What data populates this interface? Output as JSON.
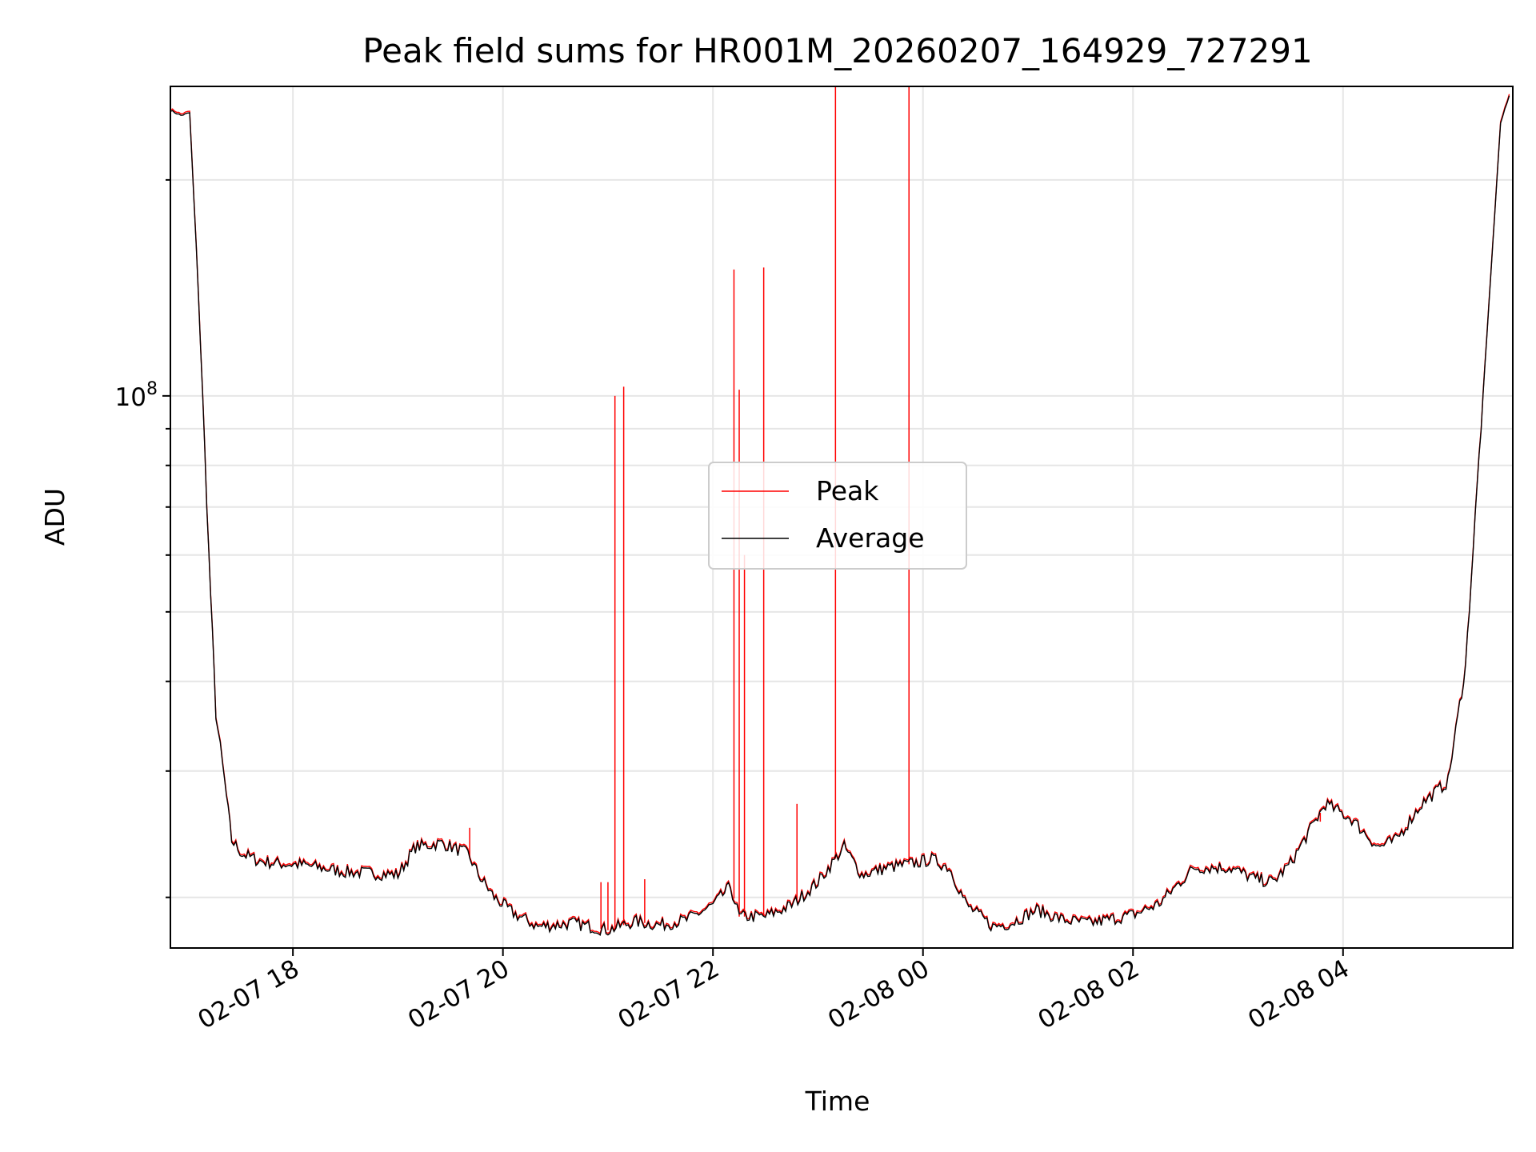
{
  "chart_data": {
    "type": "line",
    "title": "Peak field sums for HR001M_20260207_164929_727291",
    "xlabel": "Time",
    "ylabel": "ADU",
    "yscale": "log",
    "x_unit": "datetime",
    "xlim": [
      "2026-02-07 16:50",
      "2026-02-08 05:37"
    ],
    "ylim": [
      17000000,
      270000000
    ],
    "yticks": [
      {
        "value": 100000000,
        "label": "10^8"
      }
    ],
    "xticks": [
      {
        "value": "2026-02-07 18:00",
        "label": "02-07 18"
      },
      {
        "value": "2026-02-07 20:00",
        "label": "02-07 20"
      },
      {
        "value": "2026-02-07 22:00",
        "label": "02-07 22"
      },
      {
        "value": "2026-02-08 00:00",
        "label": "02-08 00"
      },
      {
        "value": "2026-02-08 02:00",
        "label": "02-08 02"
      },
      {
        "value": "2026-02-08 04:00",
        "label": "02-08 04"
      }
    ],
    "grid": true,
    "legend": {
      "position": "center",
      "entries": [
        "Peak",
        "Average"
      ]
    },
    "colors": {
      "Peak": "#ff0000",
      "Average": "#000000"
    },
    "series": [
      {
        "name": "Average",
        "x": [
          "2026-02-07 16:50",
          "2026-02-07 16:56",
          "2026-02-07 17:01",
          "2026-02-07 17:06",
          "2026-02-07 17:12",
          "2026-02-07 17:16",
          "2026-02-07 17:21",
          "2026-02-07 17:25",
          "2026-02-07 17:31",
          "2026-02-07 17:40",
          "2026-02-07 17:50",
          "2026-02-07 18:05",
          "2026-02-07 18:30",
          "2026-02-07 19:00",
          "2026-02-07 19:10",
          "2026-02-07 19:25",
          "2026-02-07 19:40",
          "2026-02-07 19:46",
          "2026-02-07 19:55",
          "2026-02-07 20:06",
          "2026-02-07 20:20",
          "2026-02-07 20:40",
          "2026-02-07 21:00",
          "2026-02-07 21:15",
          "2026-02-07 21:30",
          "2026-02-07 21:45",
          "2026-02-07 22:00",
          "2026-02-07 22:10",
          "2026-02-07 22:15",
          "2026-02-07 22:30",
          "2026-02-07 22:45",
          "2026-02-07 23:00",
          "2026-02-07 23:15",
          "2026-02-07 23:25",
          "2026-02-07 23:40",
          "2026-02-07 23:55",
          "2026-02-08 00:05",
          "2026-02-08 00:15",
          "2026-02-08 00:25",
          "2026-02-08 00:40",
          "2026-02-08 00:50",
          "2026-02-08 01:05",
          "2026-02-08 01:20",
          "2026-02-08 01:35",
          "2026-02-08 02:00",
          "2026-02-08 02:15",
          "2026-02-08 02:35",
          "2026-02-08 02:55",
          "2026-02-08 03:10",
          "2026-02-08 03:20",
          "2026-02-08 03:30",
          "2026-02-08 03:50",
          "2026-02-08 04:05",
          "2026-02-08 04:20",
          "2026-02-08 04:30",
          "2026-02-08 04:45",
          "2026-02-08 05:00",
          "2026-02-08 05:10",
          "2026-02-08 05:20",
          "2026-02-08 05:30",
          "2026-02-08 05:35"
        ],
        "y": [
          250000000,
          246000000,
          248000000,
          140000000,
          60000000,
          36000000,
          29000000,
          24000000,
          23000000,
          22500000,
          22300000,
          22200000,
          21700000,
          21500000,
          23500000,
          23800000,
          23000000,
          21500000,
          20000000,
          19000000,
          18200000,
          18400000,
          18000000,
          18500000,
          18300000,
          18600000,
          19500000,
          20700000,
          18800000,
          18800000,
          19500000,
          21000000,
          23500000,
          21500000,
          22000000,
          22300000,
          22600000,
          22000000,
          19500000,
          18200000,
          18400000,
          19200000,
          18600000,
          18400000,
          18900000,
          19600000,
          22000000,
          22000000,
          21200000,
          21000000,
          22300000,
          27000000,
          25700000,
          23500000,
          24000000,
          27000000,
          29000000,
          42000000,
          100000000,
          240000000,
          262000000
        ]
      },
      {
        "name": "Peak",
        "spikes": [
          {
            "x": "2026-02-07 21:04",
            "y": 100000000
          },
          {
            "x": "2026-02-07 21:09",
            "y": 103000000
          },
          {
            "x": "2026-02-07 20:56",
            "y": 21000000
          },
          {
            "x": "2026-02-07 21:00",
            "y": 21000000
          },
          {
            "x": "2026-02-07 21:21",
            "y": 21200000
          },
          {
            "x": "2026-02-07 22:12",
            "y": 150000000
          },
          {
            "x": "2026-02-07 22:15",
            "y": 102000000
          },
          {
            "x": "2026-02-07 22:18",
            "y": 60000000
          },
          {
            "x": "2026-02-07 22:29",
            "y": 151000000
          },
          {
            "x": "2026-02-07 22:48",
            "y": 27000000
          },
          {
            "x": "2026-02-07 23:10",
            "y": 270000000
          },
          {
            "x": "2026-02-07 23:52",
            "y": 270000000
          },
          {
            "x": "2026-02-07 19:41",
            "y": 25000000
          },
          {
            "x": "2026-02-08 03:47",
            "y": 25500000
          }
        ]
      }
    ]
  }
}
